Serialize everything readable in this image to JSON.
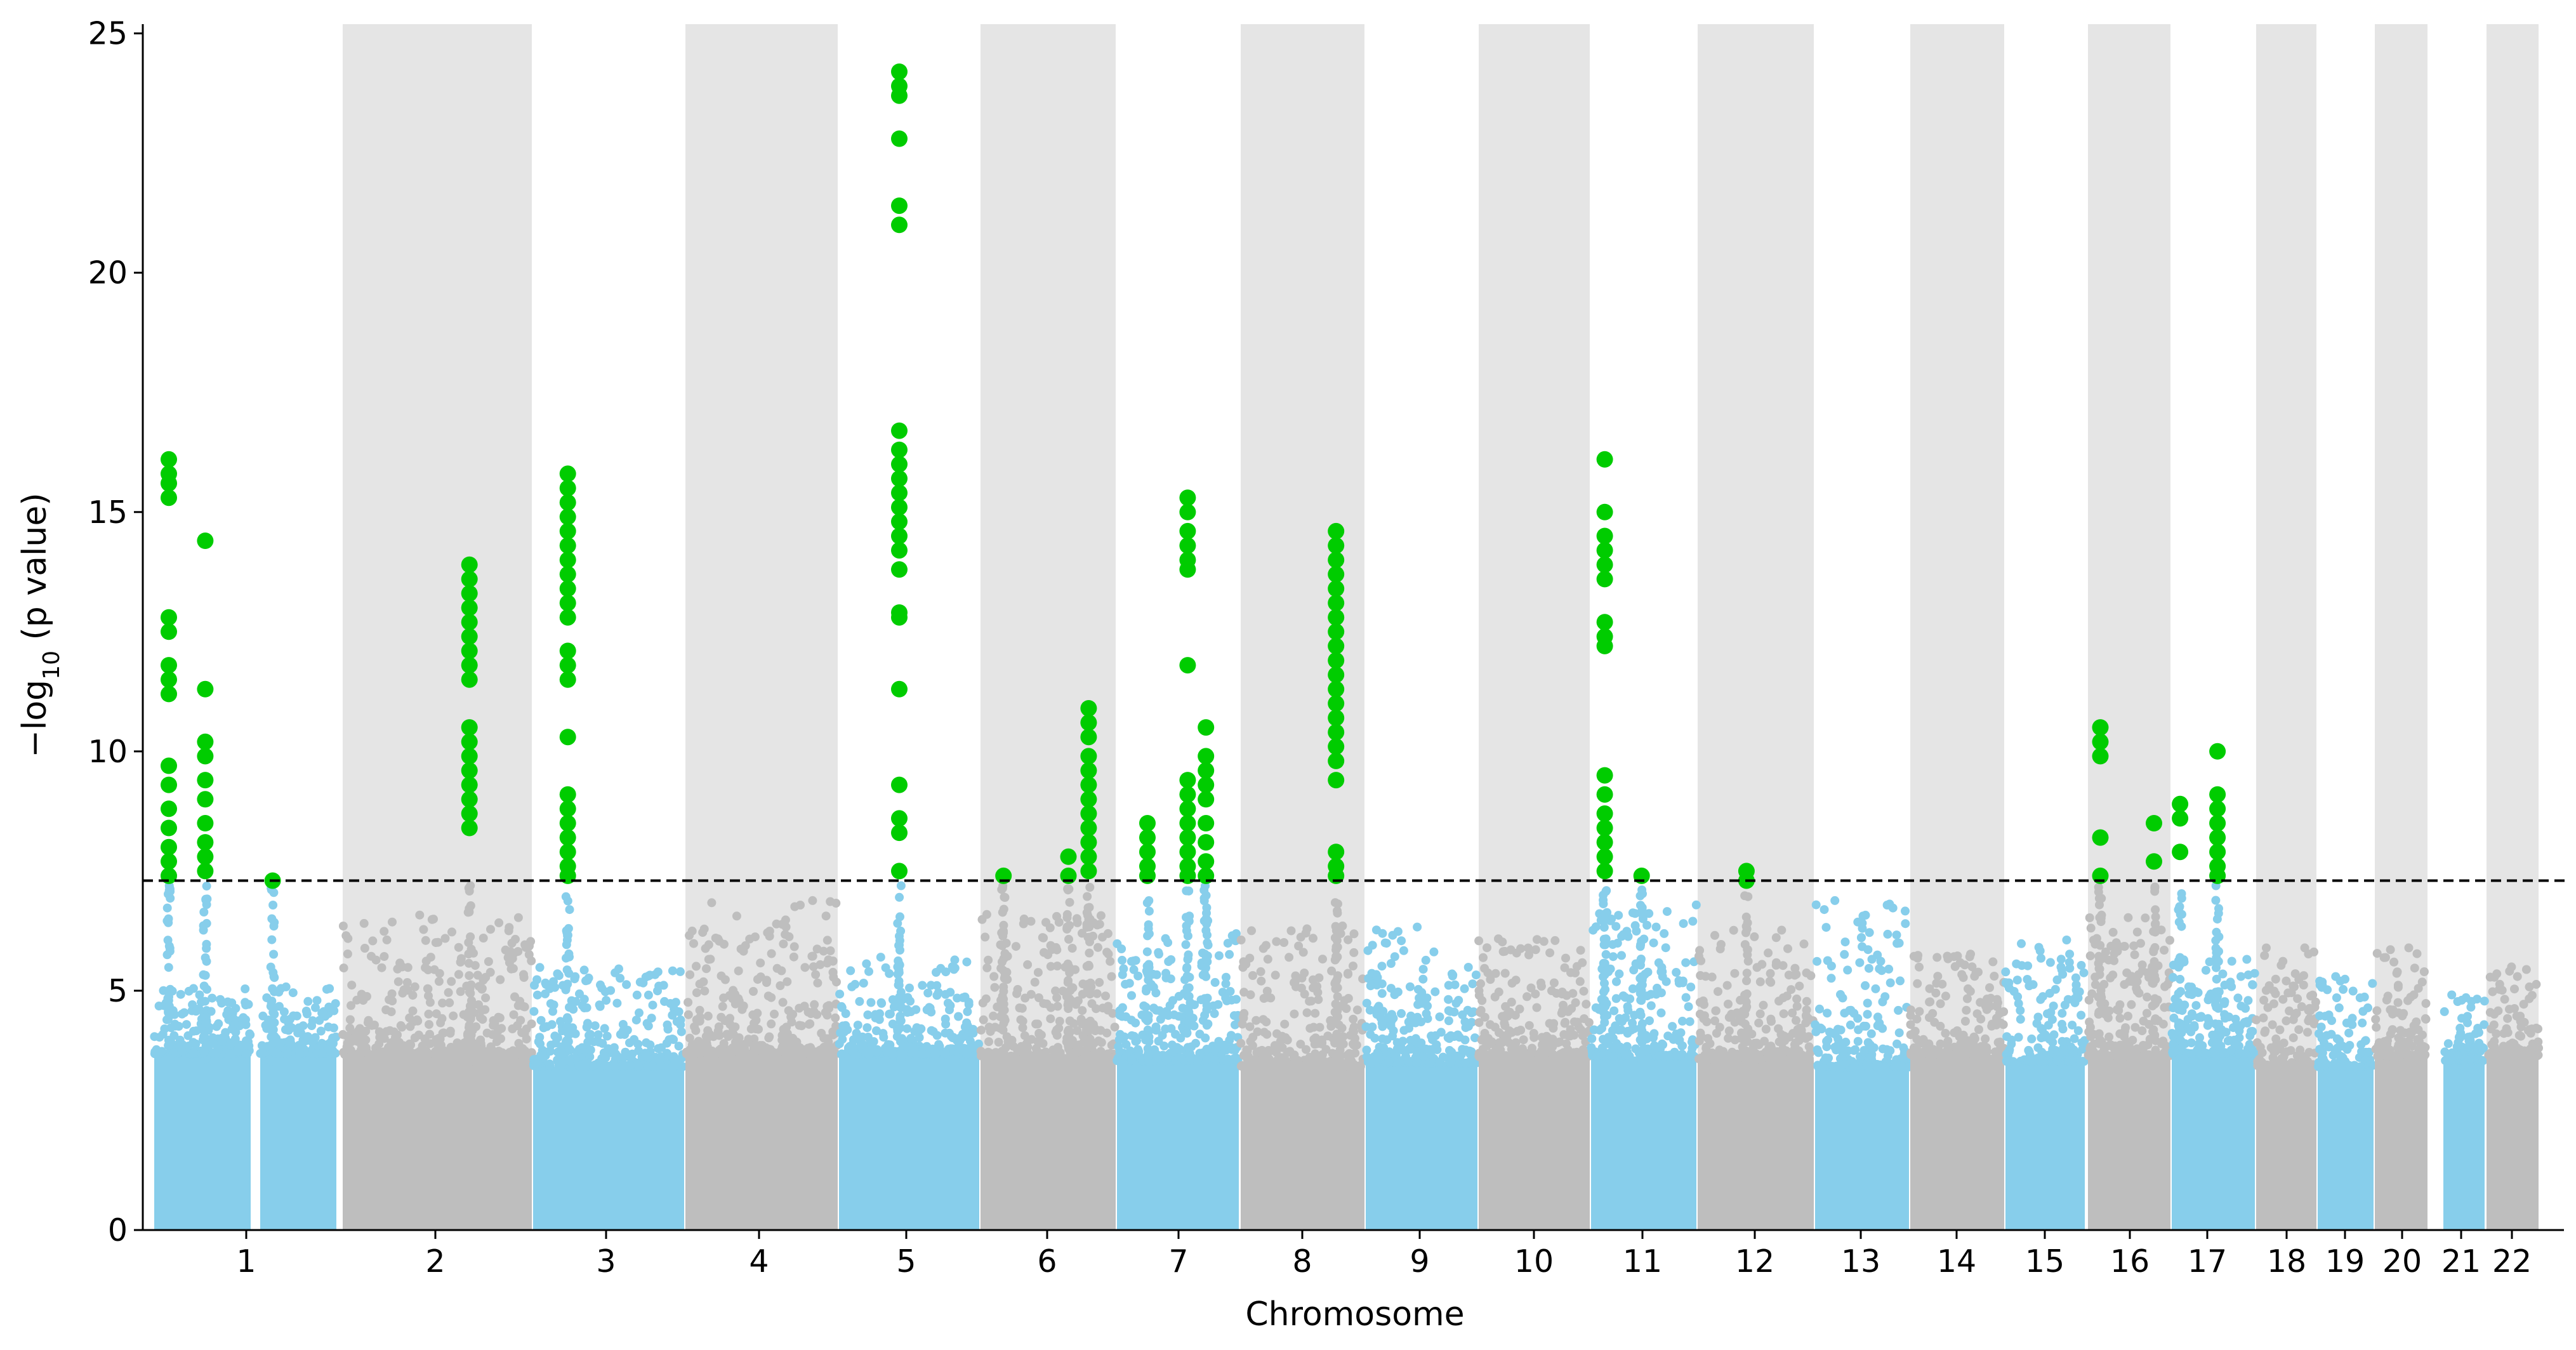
{
  "chart_data": {
    "type": "scatter",
    "subtype": "manhattan",
    "title": "",
    "xlabel": "Chromosome",
    "ylabel": "−log",
    "ylabel_sub": "10",
    "ylabel_suffix": " (p value)",
    "ylim": [
      0,
      25.3
    ],
    "yticks": [
      0,
      5,
      10,
      15,
      20,
      25
    ],
    "significance_threshold": 7.3,
    "threshold_style": "dashed",
    "grid": false,
    "legend": "none",
    "colors": {
      "odd_chromosome": "#87CEEB",
      "even_chromosome": "#BEBEBE",
      "significant": "#00CC00",
      "even_band": "#E5E5E5",
      "threshold": "#000000"
    },
    "chromosomes": [
      {
        "label": "1",
        "max_background": 5.1,
        "peaks": [
          {
            "pos": 0.08,
            "max": 16.1,
            "values": [
              16.1,
              15.8,
              15.6,
              15.3,
              12.8,
              12.5,
              11.8,
              11.5,
              11.2,
              9.7,
              9.3,
              8.8,
              8.4,
              8.0,
              7.7,
              7.4
            ]
          },
          {
            "pos": 0.28,
            "max": 14.4,
            "values": [
              14.4,
              11.3,
              10.2,
              9.9,
              9.4,
              9.0,
              8.5,
              8.1,
              7.8,
              7.5
            ]
          },
          {
            "pos": 0.65,
            "max": 7.3,
            "values": [
              7.3
            ]
          }
        ]
      },
      {
        "label": "2",
        "max_background": 6.6,
        "peaks": [
          {
            "pos": 0.67,
            "max": 13.9,
            "values": [
              13.9,
              13.6,
              13.3,
              13.0,
              12.7,
              12.4,
              12.1,
              11.8,
              11.5,
              10.5,
              10.2,
              9.9,
              9.6,
              9.3,
              9.0,
              8.7,
              8.4
            ]
          }
        ]
      },
      {
        "label": "3",
        "max_background": 5.5,
        "peaks": [
          {
            "pos": 0.23,
            "max": 15.8,
            "values": [
              15.8,
              15.5,
              15.2,
              14.9,
              14.6,
              14.3,
              14.0,
              13.7,
              13.4,
              13.1,
              12.8,
              12.1,
              11.8,
              11.5,
              10.3,
              9.1,
              8.8,
              8.5,
              8.2,
              7.9,
              7.6,
              7.4
            ]
          }
        ]
      },
      {
        "label": "4",
        "max_background": 7.0,
        "peaks": []
      },
      {
        "label": "5",
        "max_background": 5.7,
        "peaks": [
          {
            "pos": 0.43,
            "max": 24.2,
            "values": [
              24.2,
              23.9,
              23.7,
              22.8,
              21.4,
              21.0,
              16.7,
              16.3,
              16.0,
              15.7,
              15.4,
              15.1,
              14.8,
              14.5,
              14.2,
              13.8,
              12.9,
              12.8,
              11.3,
              9.3,
              8.6,
              8.3,
              7.5
            ]
          }
        ]
      },
      {
        "label": "6",
        "max_background": 6.6,
        "peaks": [
          {
            "pos": 0.17,
            "max": 7.4,
            "values": [
              7.4
            ]
          },
          {
            "pos": 0.65,
            "max": 7.8,
            "values": [
              7.8,
              7.4
            ]
          },
          {
            "pos": 0.8,
            "max": 10.9,
            "values": [
              10.9,
              10.6,
              10.3,
              9.9,
              9.6,
              9.3,
              9.0,
              8.7,
              8.4,
              8.1,
              7.8,
              7.5
            ]
          }
        ]
      },
      {
        "label": "7",
        "max_background": 6.2,
        "peaks": [
          {
            "pos": 0.25,
            "max": 8.5,
            "values": [
              8.5,
              8.2,
              7.9,
              7.6,
              7.4
            ]
          },
          {
            "pos": 0.58,
            "max": 15.3,
            "values": [
              15.3,
              15.0,
              14.6,
              14.3,
              14.0,
              13.8,
              11.8,
              9.4,
              9.1,
              8.8,
              8.5,
              8.2,
              7.9,
              7.6,
              7.4
            ]
          },
          {
            "pos": 0.73,
            "max": 10.5,
            "values": [
              10.5,
              9.9,
              9.6,
              9.3,
              9.0,
              8.5,
              8.1,
              7.7,
              7.4
            ]
          }
        ]
      },
      {
        "label": "8",
        "max_background": 6.4,
        "peaks": [
          {
            "pos": 0.77,
            "max": 14.6,
            "values": [
              14.6,
              14.3,
              14.0,
              13.7,
              13.4,
              13.1,
              12.8,
              12.5,
              12.2,
              11.9,
              11.6,
              11.3,
              11.0,
              10.7,
              10.4,
              10.1,
              9.8,
              9.4,
              7.9,
              7.6,
              7.4
            ]
          }
        ]
      },
      {
        "label": "9",
        "max_background": 6.4,
        "peaks": []
      },
      {
        "label": "10",
        "max_background": 6.1,
        "peaks": []
      },
      {
        "label": "11",
        "max_background": 6.9,
        "peaks": [
          {
            "pos": 0.13,
            "max": 16.1,
            "values": [
              16.1,
              15.0,
              14.5,
              14.2,
              13.9,
              13.6,
              12.7,
              12.4,
              12.2,
              9.5,
              9.1,
              8.7,
              8.4,
              8.1,
              7.8,
              7.5
            ]
          },
          {
            "pos": 0.48,
            "max": 7.4,
            "values": [
              7.4
            ]
          }
        ]
      },
      {
        "label": "12",
        "max_background": 6.3,
        "peaks": [
          {
            "pos": 0.42,
            "max": 7.5,
            "values": [
              7.5,
              7.3
            ]
          }
        ]
      },
      {
        "label": "13",
        "max_background": 6.9,
        "peaks": []
      },
      {
        "label": "14",
        "max_background": 5.8,
        "peaks": []
      },
      {
        "label": "15",
        "max_background": 6.2,
        "peaks": []
      },
      {
        "label": "16",
        "max_background": 6.6,
        "peaks": [
          {
            "pos": 0.15,
            "max": 10.5,
            "values": [
              10.5,
              10.2,
              9.9,
              8.2,
              7.4
            ]
          },
          {
            "pos": 0.8,
            "max": 8.5,
            "values": [
              8.5,
              7.7
            ]
          }
        ]
      },
      {
        "label": "17",
        "max_background": 5.7,
        "peaks": [
          {
            "pos": 0.1,
            "max": 8.9,
            "values": [
              8.9,
              8.6,
              7.9
            ]
          },
          {
            "pos": 0.55,
            "max": 10.0,
            "values": [
              10.0,
              9.1,
              8.8,
              8.5,
              8.2,
              7.9,
              7.6,
              7.4
            ]
          }
        ]
      },
      {
        "label": "18",
        "max_background": 5.9,
        "peaks": []
      },
      {
        "label": "19",
        "max_background": 5.3,
        "peaks": []
      },
      {
        "label": "20",
        "max_background": 6.0,
        "peaks": []
      },
      {
        "label": "21",
        "max_background": 5.1,
        "peaks": []
      },
      {
        "label": "22",
        "max_background": 5.5,
        "peaks": []
      }
    ]
  }
}
